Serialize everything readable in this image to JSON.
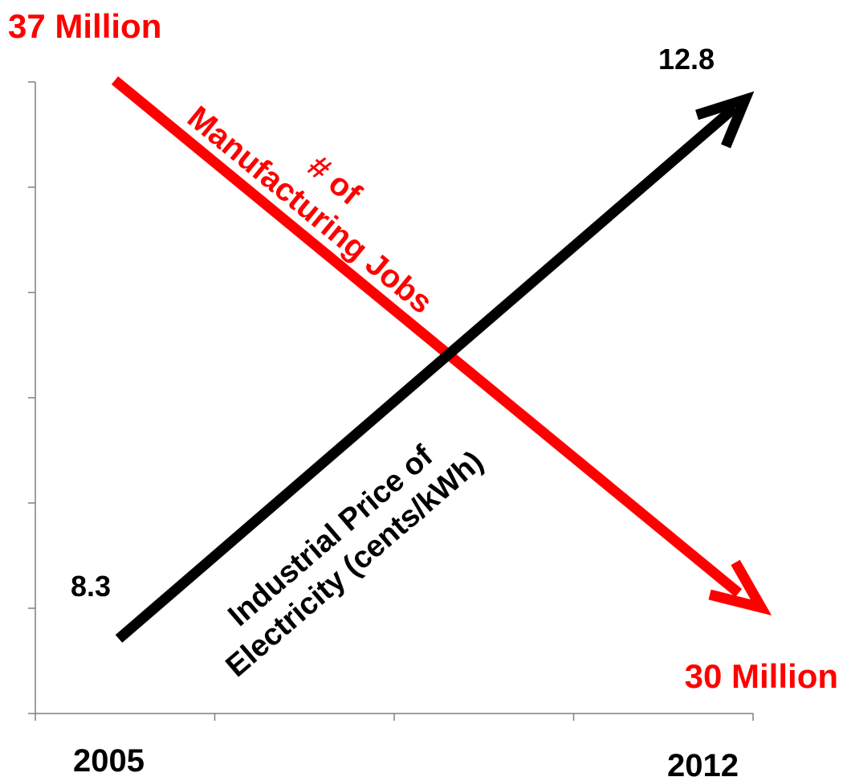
{
  "chart_data": {
    "type": "line",
    "x_start_label": "2005",
    "x_end_label": "2012",
    "y_tick_count": 7,
    "x_tick_count": 5,
    "colors": {
      "jobs": "#ff0000",
      "price": "#000000",
      "axis": "#7f7f7f"
    },
    "series": [
      {
        "key": "jobs",
        "name": "# of Manufacturing Jobs",
        "name_lines": [
          "# of",
          "Manufacturing Jobs"
        ],
        "start_label": "37 Million",
        "end_label": "30 Million",
        "values": [
          37,
          30
        ],
        "units": "Million"
      },
      {
        "key": "price",
        "name": "Industrial Price of Electricity (cents/kWh)",
        "name_lines": [
          "Industrial Price of",
          "Electricity (cents/kWh)"
        ],
        "start_label": "8.3",
        "end_label": "12.8",
        "values": [
          8.3,
          12.8
        ],
        "units": "cents/kWh"
      }
    ]
  }
}
